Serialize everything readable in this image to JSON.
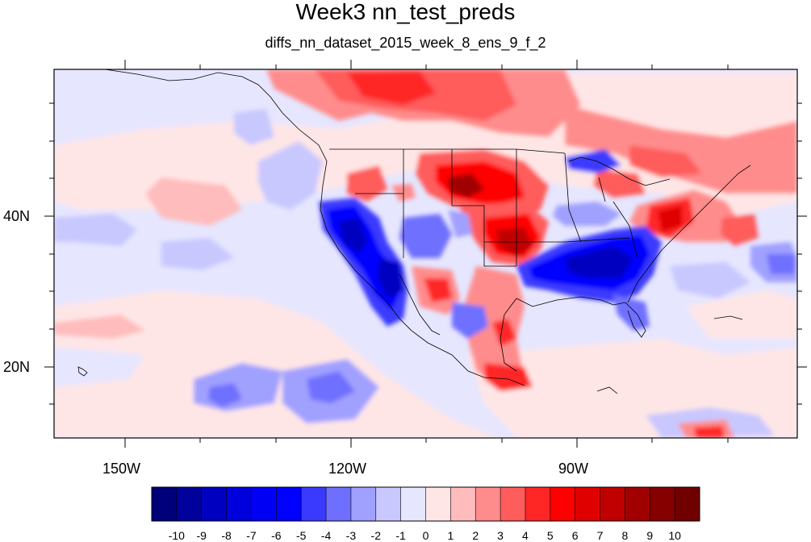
{
  "title": "Week3 nn_test_preds",
  "subtitle": "diffs_nn_dataset_2015_week_8_ens_9_f_2",
  "lon_labels": [
    "150W",
    "120W",
    "90W"
  ],
  "lat_labels": [
    "40N",
    "20N"
  ],
  "colorbar": {
    "labels": [
      "-10",
      "-9",
      "-8",
      "-7",
      "-6",
      "-5",
      "-4",
      "-3",
      "-2",
      "-1",
      "0",
      "1",
      "2",
      "3",
      "4",
      "5",
      "6",
      "7",
      "8",
      "9",
      "10"
    ],
    "colors": [
      "#00007a",
      "#00009a",
      "#0000c0",
      "#0000dd",
      "#0000f5",
      "#0000ff",
      "#3a3aff",
      "#6f6fff",
      "#a0a0ff",
      "#c8c8ff",
      "#e6e6ff",
      "#ffe6e6",
      "#ffbcbc",
      "#ff8c8c",
      "#ff5c5c",
      "#ff2626",
      "#ff0000",
      "#e00000",
      "#c00000",
      "#a00000",
      "#860000",
      "#700000"
    ]
  }
}
